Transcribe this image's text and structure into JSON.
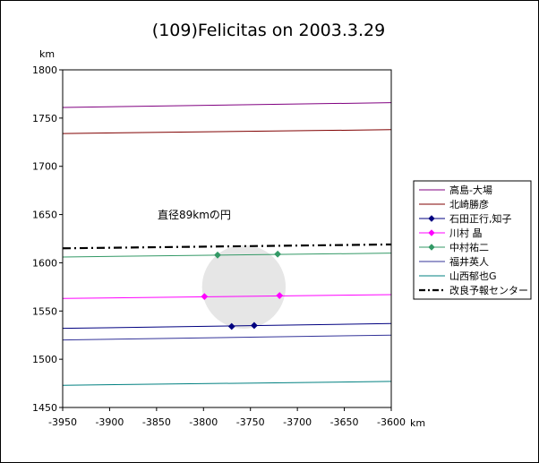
{
  "chart_data": {
    "type": "line",
    "title": "(109)Felicitas on 2003.3.29",
    "xunit": "km",
    "yunit": "km",
    "xlim": [
      -3950,
      -3600
    ],
    "ylim": [
      1450,
      1800
    ],
    "xticks": [
      -3950,
      -3900,
      -3850,
      -3800,
      -3750,
      -3700,
      -3650,
      -3600
    ],
    "yticks": [
      1450,
      1500,
      1550,
      1600,
      1650,
      1700,
      1750,
      1800
    ],
    "xtick_labels": [
      "-3950",
      "-3900",
      "-3850",
      "-3800",
      "-3750",
      "-3700",
      "-3650",
      "-3600"
    ],
    "ytick_labels": [
      "1450",
      "1500",
      "1550",
      "1600",
      "1650",
      "1700",
      "1750",
      "1800"
    ],
    "grid": false,
    "legend_position": "right",
    "annotation": "直径89kmの円",
    "circle": {
      "cx": -3757,
      "cy": 1575,
      "r": 44.5,
      "color": "#e6e6e6"
    },
    "series": [
      {
        "name": "高島-大場",
        "color": "#800080",
        "marker": "none",
        "dash": "solid",
        "x": [
          -3950,
          -3600
        ],
        "y": [
          1761,
          1766
        ],
        "points": []
      },
      {
        "name": "北崎勝彦",
        "color": "#800000",
        "marker": "none",
        "dash": "solid",
        "x": [
          -3950,
          -3600
        ],
        "y": [
          1734,
          1738
        ],
        "points": []
      },
      {
        "name": "石田正行,知子",
        "color": "#000080",
        "marker": "diamond",
        "dash": "solid",
        "x": [
          -3950,
          -3600
        ],
        "y": [
          1532,
          1537
        ],
        "points": [
          [
            -3770,
            1534
          ],
          [
            -3746,
            1535
          ]
        ]
      },
      {
        "name": "川村 晶",
        "color": "#ff00ff",
        "marker": "diamond",
        "dash": "solid",
        "x": [
          -3950,
          -3600
        ],
        "y": [
          1563,
          1567
        ],
        "points": [
          [
            -3799,
            1565
          ],
          [
            -3719,
            1566
          ]
        ]
      },
      {
        "name": "中村祐二",
        "color": "#339966",
        "marker": "diamond",
        "dash": "solid",
        "x": [
          -3950,
          -3600
        ],
        "y": [
          1606,
          1610
        ],
        "points": [
          [
            -3785,
            1608
          ],
          [
            -3721,
            1609
          ]
        ]
      },
      {
        "name": "福井英人",
        "color": "#333399",
        "marker": "none",
        "dash": "solid",
        "x": [
          -3950,
          -3600
        ],
        "y": [
          1520,
          1525
        ],
        "points": []
      },
      {
        "name": "山西郁也G",
        "color": "#008080",
        "marker": "none",
        "dash": "solid",
        "x": [
          -3950,
          -3600
        ],
        "y": [
          1473,
          1477
        ],
        "points": []
      },
      {
        "name": "改良予報センター",
        "color": "#000000",
        "marker": "none",
        "dash": "dashdot",
        "x": [
          -3950,
          -3600
        ],
        "y": [
          1615,
          1619
        ],
        "points": []
      }
    ]
  }
}
